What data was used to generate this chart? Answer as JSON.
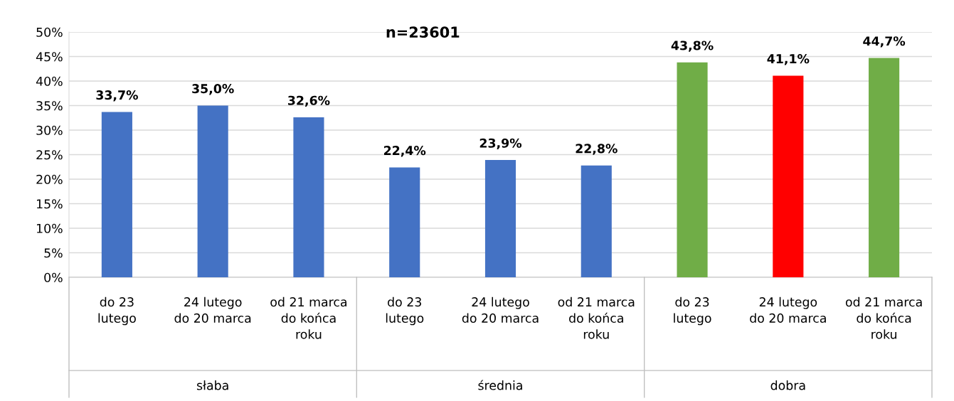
{
  "chart_data": {
    "type": "bar",
    "title": "n=23601",
    "categories": [
      "do 23\nlutego",
      "24 lutego\ndo 20 marca",
      "od 21 marca\ndo końca\nroku",
      "do 23\nlutego",
      "24 lutego\ndo 20 marca",
      "od 21 marca\ndo końca\nroku",
      "do 23\nlutego",
      "24 lutego\ndo 20 marca",
      "od 21 marca\ndo końca\nroku"
    ],
    "values": [
      33.7,
      35.0,
      32.6,
      22.4,
      23.9,
      22.8,
      43.8,
      41.1,
      44.7
    ],
    "value_labels": [
      "33,7%",
      "35,0%",
      "32,6%",
      "22,4%",
      "23,9%",
      "22,8%",
      "43,8%",
      "41,1%",
      "44,7%"
    ],
    "colors": [
      "#4472c4",
      "#4472c4",
      "#4472c4",
      "#4472c4",
      "#4472c4",
      "#4472c4",
      "#70ad47",
      "#ff0000",
      "#70ad47"
    ],
    "ylim": [
      0,
      50
    ],
    "yticks": [
      {
        "value": 0,
        "label": "0%"
      },
      {
        "value": 5,
        "label": "5%"
      },
      {
        "value": 10,
        "label": "10%"
      },
      {
        "value": 15,
        "label": "15%"
      },
      {
        "value": 20,
        "label": "20%"
      },
      {
        "value": 25,
        "label": "25%"
      },
      {
        "value": 30,
        "label": "30%"
      },
      {
        "value": 35,
        "label": "35%"
      },
      {
        "value": 40,
        "label": "40%"
      },
      {
        "value": 45,
        "label": "45%"
      },
      {
        "value": 50,
        "label": "50%"
      }
    ],
    "annotations": [
      "słaba",
      "średnia",
      "dobra"
    ],
    "grid": "y",
    "legend": false
  }
}
